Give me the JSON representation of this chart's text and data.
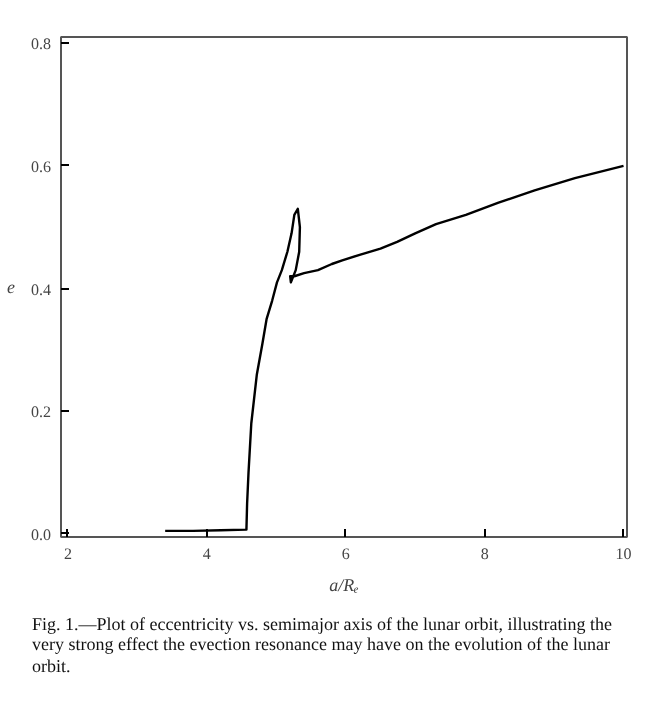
{
  "chart_data": {
    "type": "line",
    "xlabel": "a/Rₑ",
    "ylabel": "e",
    "xlim": [
      1.9,
      10.05
    ],
    "ylim": [
      -0.005,
      0.81
    ],
    "xticks": [
      2,
      4,
      6,
      8,
      10
    ],
    "yticks": [
      {
        "value": 0,
        "label": "0.0"
      },
      0.2,
      0.4,
      0.6,
      0.8
    ],
    "grid": false,
    "series": [
      {
        "color": "#000000",
        "x": [
          3.4,
          3.8,
          4.2,
          4.57,
          4.58,
          4.6,
          4.64,
          4.72,
          4.8,
          4.86,
          4.94,
          5.01,
          5.08,
          5.16,
          5.22,
          5.26,
          5.31,
          5.34,
          5.33,
          5.28,
          5.21,
          5.2,
          5.26,
          5.4,
          5.6,
          5.8,
          5.95,
          6.2,
          6.5,
          6.74,
          7.0,
          7.3,
          7.73,
          8.2,
          8.72,
          9.3,
          10.0
        ],
        "values": [
          0.005,
          0.005,
          0.006,
          0.007,
          0.05,
          0.1,
          0.18,
          0.26,
          0.31,
          0.35,
          0.38,
          0.41,
          0.43,
          0.46,
          0.49,
          0.52,
          0.53,
          0.5,
          0.46,
          0.43,
          0.41,
          0.42,
          0.42,
          0.425,
          0.43,
          0.44,
          0.446,
          0.455,
          0.465,
          0.476,
          0.49,
          0.505,
          0.52,
          0.54,
          0.56,
          0.58,
          0.6
        ]
      }
    ],
    "annotations": [
      "Fig. 1.—Plot of eccentricity vs. semimajor axis of the lunar orbit, illustrating the very strong effect the evection resonance may have on the evolution of the lunar orbit."
    ]
  }
}
